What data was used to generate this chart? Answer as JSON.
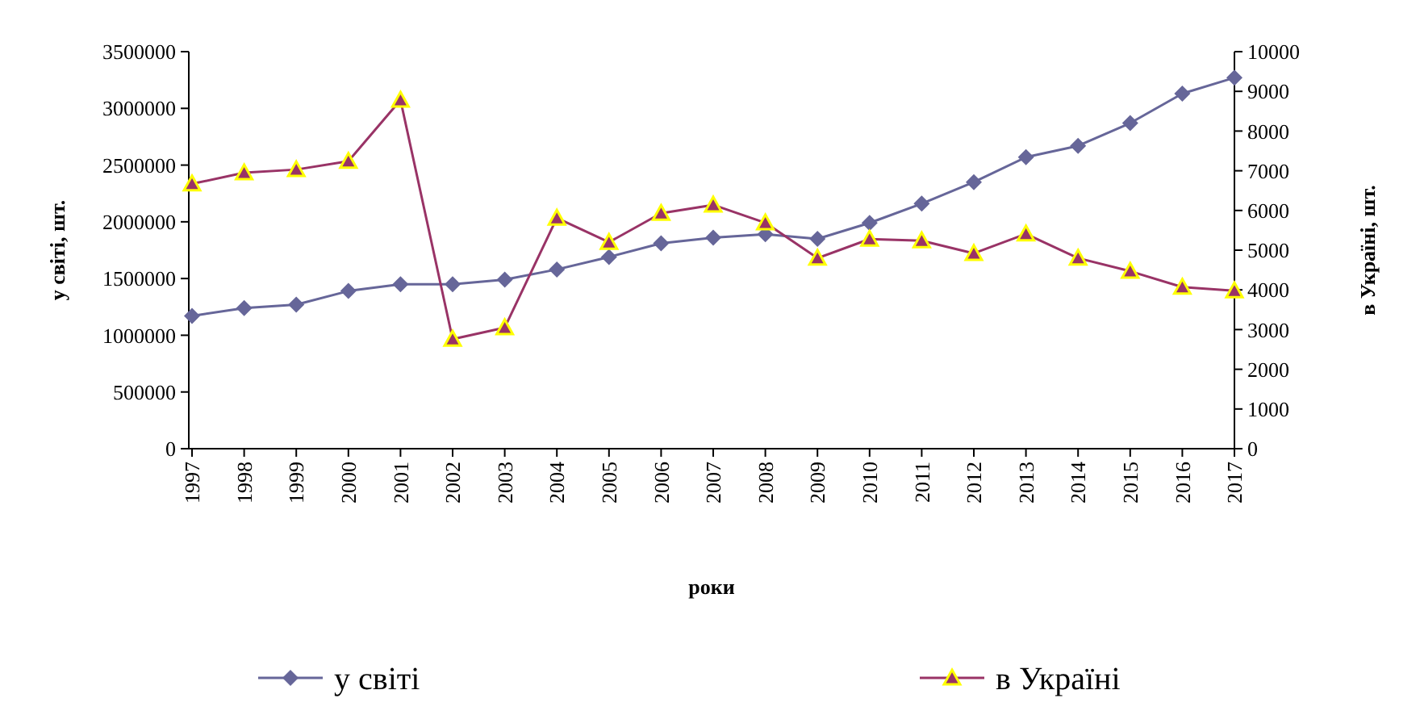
{
  "chart_data": {
    "type": "line",
    "xlabel": "роки",
    "ylabel": "у світі, шт.",
    "y2label": "в Україні, шт.",
    "categories": [
      "1997",
      "1998",
      "1999",
      "2000",
      "2001",
      "2002",
      "2003",
      "2004",
      "2005",
      "2006",
      "2007",
      "2008",
      "2009",
      "2010",
      "2011",
      "2012",
      "2013",
      "2014",
      "2015",
      "2016",
      "2017"
    ],
    "series": [
      {
        "name": "у світі",
        "color": "#666699",
        "marker": "diamond",
        "values": [
          1170000,
          1240000,
          1270000,
          1390000,
          1450000,
          1450000,
          1490000,
          1580000,
          1690000,
          1810000,
          1860000,
          1890000,
          1850000,
          1990000,
          2160000,
          2350000,
          2570000,
          2670000,
          2870000,
          3130000,
          3270000
        ]
      },
      {
        "name": "в Україні",
        "color": "#993366",
        "marker": "triangle",
        "axis": "y2",
        "values": [
          6670,
          6950,
          7030,
          7240,
          8780,
          2760,
          3050,
          5810,
          5200,
          5930,
          6140,
          5690,
          4800,
          5280,
          5240,
          4920,
          5410,
          4800,
          4470,
          4070,
          3980
        ]
      }
    ],
    "ylim": [
      0,
      3500000
    ],
    "yticks": [
      0,
      500000,
      1000000,
      1500000,
      2000000,
      2500000,
      3000000,
      3500000
    ],
    "y2lim": [
      0,
      10000
    ],
    "y2ticks": [
      0,
      1000,
      2000,
      3000,
      4000,
      5000,
      6000,
      7000,
      8000,
      9000,
      10000
    ],
    "grid": false,
    "legend": "bottom",
    "line_style": "solid"
  }
}
